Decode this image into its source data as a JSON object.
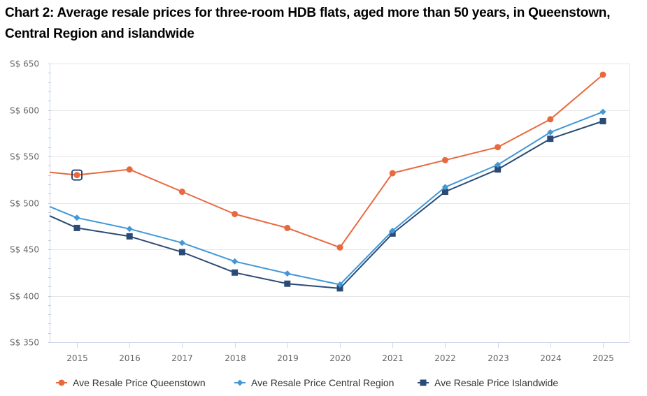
{
  "chart_data": {
    "type": "line",
    "title": "Chart 2: Average resale prices for three-room HDB flats, aged more than 50 years, in Queenstown, Central Region and islandwide",
    "xlabel": "",
    "ylabel": "",
    "categories": [
      "2015",
      "2016",
      "2017",
      "2018",
      "2019",
      "2020",
      "2021",
      "2022",
      "2023",
      "2024",
      "2025"
    ],
    "ylim": [
      350,
      650
    ],
    "yticks": [
      350,
      400,
      450,
      500,
      550,
      600,
      650
    ],
    "ytick_labels": [
      "S$ 350",
      "S$ 400",
      "S$ 450",
      "S$ 500",
      "S$ 550",
      "S$ 600",
      "S$ 650"
    ],
    "grid": true,
    "legend_position": "bottom",
    "highlighted_point": {
      "series": 0,
      "index": 0
    },
    "series": [
      {
        "name": "Ave Resale Price Queenstown",
        "color": "#e8693e",
        "marker": "circle",
        "left_edge_value": 533,
        "values": [
          530,
          536,
          512,
          488,
          473,
          452,
          532,
          546,
          560,
          590,
          638
        ]
      },
      {
        "name": "Ave Resale Price Central Region",
        "color": "#4297d7",
        "marker": "diamond",
        "left_edge_value": 496,
        "values": [
          484,
          472,
          457,
          437,
          424,
          412,
          470,
          517,
          541,
          576,
          598
        ]
      },
      {
        "name": "Ave Resale Price Islandwide",
        "color": "#2b4a75",
        "marker": "square",
        "left_edge_value": 486,
        "values": [
          473,
          464,
          447,
          425,
          413,
          408,
          467,
          512,
          536,
          569,
          588
        ]
      }
    ]
  },
  "colors": {
    "grid": "#e6e6e6",
    "axis": "#ccd6eb",
    "highlight": "#2b4a75"
  }
}
